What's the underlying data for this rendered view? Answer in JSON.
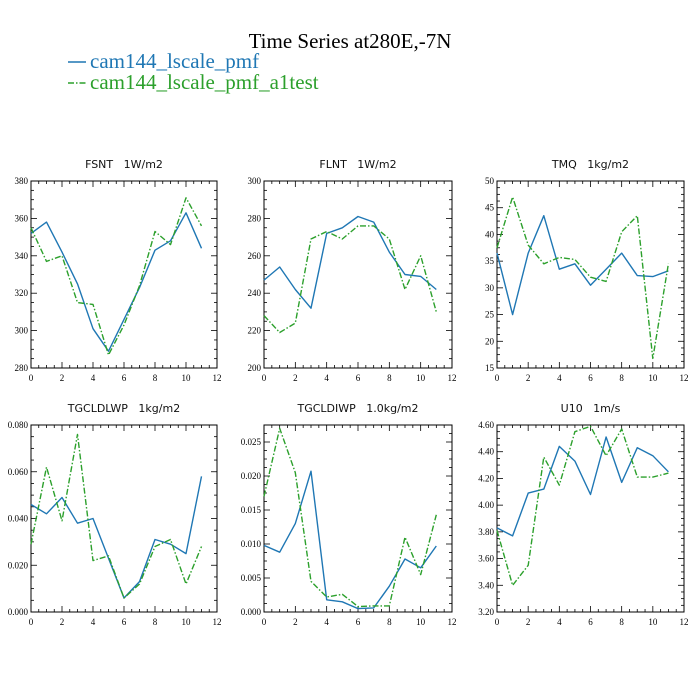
{
  "figure": {
    "title": "Time Series at280E,-7N",
    "legend": [
      {
        "label": "cam144_lscale_pmf",
        "color": "#1f77b4"
      },
      {
        "label": "cam144_lscale_pmf_a1test",
        "color": "#2ca02c"
      }
    ]
  },
  "chart_data": [
    {
      "type": "line",
      "title": "FSNT",
      "units": "1W/m2",
      "xlim": [
        0,
        12
      ],
      "xticks": [
        0,
        2,
        4,
        6,
        8,
        10,
        12
      ],
      "ylim": [
        280,
        380
      ],
      "yticks": [
        "280",
        "300",
        "320",
        "340",
        "360",
        "380"
      ],
      "x": [
        0,
        1,
        2,
        3,
        4,
        5,
        6,
        7,
        8,
        9,
        10,
        11
      ],
      "series": [
        {
          "name": "cam144_lscale_pmf",
          "values": [
            352,
            358,
            342,
            325,
            301,
            289,
            306,
            323,
            343,
            348,
            363,
            344
          ]
        },
        {
          "name": "cam144_lscale_pmf_a1test",
          "values": [
            355,
            337,
            340,
            315,
            314,
            287,
            303,
            324,
            353,
            346,
            371,
            356
          ]
        }
      ]
    },
    {
      "type": "line",
      "title": "FLNT",
      "units": "1W/m2",
      "xlim": [
        0,
        12
      ],
      "xticks": [
        0,
        2,
        4,
        6,
        8,
        10,
        12
      ],
      "ylim": [
        200,
        300
      ],
      "yticks": [
        "200",
        "220",
        "240",
        "260",
        "280",
        "300"
      ],
      "x": [
        0,
        1,
        2,
        3,
        4,
        5,
        6,
        7,
        8,
        9,
        10,
        11
      ],
      "series": [
        {
          "name": "cam144_lscale_pmf",
          "values": [
            247,
            254,
            242,
            232,
            272,
            275,
            281,
            278,
            262,
            250,
            249,
            242
          ]
        },
        {
          "name": "cam144_lscale_pmf_a1test",
          "values": [
            228,
            219,
            224,
            269,
            273,
            269,
            276,
            276,
            269,
            242,
            260,
            230
          ]
        }
      ]
    },
    {
      "type": "line",
      "title": "TMQ",
      "units": "1kg/m2",
      "xlim": [
        0,
        12
      ],
      "xticks": [
        0,
        2,
        4,
        6,
        8,
        10,
        12
      ],
      "ylim": [
        15,
        50
      ],
      "yticks": [
        "15",
        "20",
        "25",
        "30",
        "35",
        "40",
        "45",
        "50"
      ],
      "x": [
        0,
        1,
        2,
        3,
        4,
        5,
        6,
        7,
        8,
        9,
        10,
        11
      ],
      "series": [
        {
          "name": "cam144_lscale_pmf",
          "values": [
            36.5,
            25,
            36.5,
            43.5,
            33.5,
            34.5,
            30.5,
            33.5,
            36.5,
            32.3,
            32.1,
            33.2
          ]
        },
        {
          "name": "cam144_lscale_pmf_a1test",
          "values": [
            37.5,
            47,
            38,
            34.5,
            35.7,
            35.3,
            32,
            31.2,
            40.5,
            43.5,
            16.8,
            34.5
          ]
        }
      ]
    },
    {
      "type": "line",
      "title": "TGCLDLWP",
      "units": "1kg/m2",
      "xlim": [
        0,
        12
      ],
      "xticks": [
        0,
        2,
        4,
        6,
        8,
        10,
        12
      ],
      "ylim": [
        0,
        0.08
      ],
      "yticks": [
        "0.000",
        "0.020",
        "0.040",
        "0.060",
        "0.080"
      ],
      "x": [
        0,
        1,
        2,
        3,
        4,
        5,
        6,
        7,
        8,
        9,
        10,
        11
      ],
      "series": [
        {
          "name": "cam144_lscale_pmf",
          "values": [
            0.046,
            0.042,
            0.049,
            0.038,
            0.04,
            0.023,
            0.006,
            0.013,
            0.031,
            0.029,
            0.025,
            0.058
          ]
        },
        {
          "name": "cam144_lscale_pmf_a1test",
          "values": [
            0.029,
            0.062,
            0.039,
            0.076,
            0.022,
            0.024,
            0.006,
            0.012,
            0.028,
            0.031,
            0.012,
            0.028
          ]
        }
      ]
    },
    {
      "type": "line",
      "title": "TGCLDIWP",
      "units": "1.0kg/m2",
      "xlim": [
        0,
        12
      ],
      "xticks": [
        0,
        2,
        4,
        6,
        8,
        10,
        12
      ],
      "ylim": [
        0,
        0.0275
      ],
      "yticks": [
        "0.000",
        "0.005",
        "0.010",
        "0.015",
        "0.020",
        "0.025"
      ],
      "x": [
        0,
        1,
        2,
        3,
        4,
        5,
        6,
        7,
        8,
        9,
        10,
        11
      ],
      "series": [
        {
          "name": "cam144_lscale_pmf",
          "values": [
            0.0098,
            0.0088,
            0.013,
            0.0207,
            0.0018,
            0.0015,
            0.0005,
            0.0006,
            0.0038,
            0.0078,
            0.0065,
            0.0097
          ]
        },
        {
          "name": "cam144_lscale_pmf_a1test",
          "values": [
            0.017,
            0.027,
            0.0205,
            0.0045,
            0.0022,
            0.0026,
            0.0008,
            0.0009,
            0.0009,
            0.011,
            0.0055,
            0.0143
          ]
        }
      ]
    },
    {
      "type": "line",
      "title": "U10",
      "units": "1m/s",
      "xlim": [
        0,
        12
      ],
      "xticks": [
        0,
        2,
        4,
        6,
        8,
        10,
        12
      ],
      "ylim": [
        3.2,
        4.6
      ],
      "yticks": [
        "3.20",
        "3.40",
        "3.60",
        "3.80",
        "4.00",
        "4.20",
        "4.40",
        "4.60"
      ],
      "x": [
        0,
        1,
        2,
        3,
        4,
        5,
        6,
        7,
        8,
        9,
        10,
        11
      ],
      "series": [
        {
          "name": "cam144_lscale_pmf",
          "values": [
            3.83,
            3.77,
            4.09,
            4.12,
            4.44,
            4.33,
            4.08,
            4.51,
            4.17,
            4.43,
            4.37,
            4.25
          ]
        },
        {
          "name": "cam144_lscale_pmf_a1test",
          "values": [
            3.81,
            3.4,
            3.55,
            4.36,
            4.15,
            4.55,
            4.59,
            4.37,
            4.57,
            4.21,
            4.21,
            4.24
          ]
        }
      ]
    }
  ]
}
